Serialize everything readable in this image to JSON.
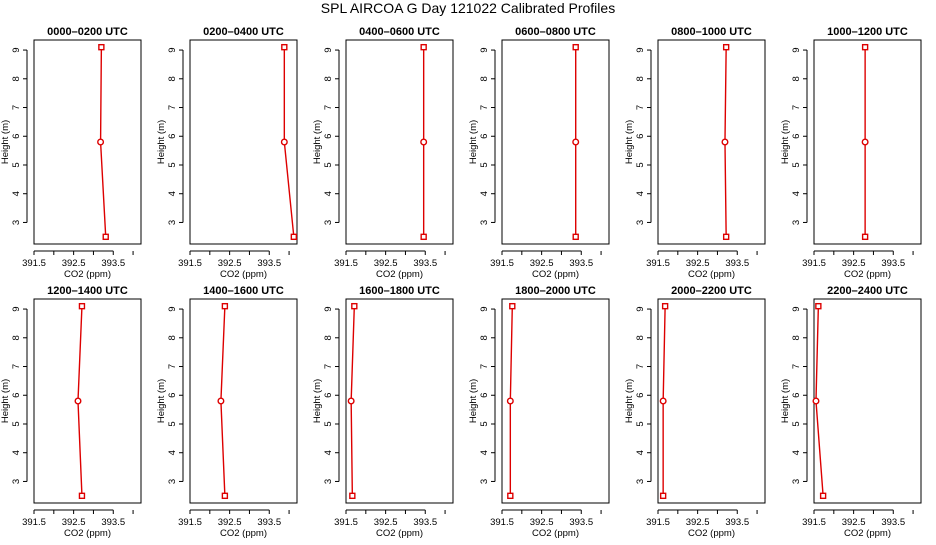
{
  "title": "SPL AIRCOA G  Day 121022  Calibrated Profiles",
  "chart_data": [
    {
      "type": "line",
      "title": "0000–0200 UTC",
      "xlabel": "CO2 (ppm)",
      "ylabel": "Height (m)",
      "xlim": [
        391.5,
        394.2
      ],
      "ylim": [
        2.25,
        9.35
      ],
      "xticks": [
        "391.5",
        "392.5",
        "393.5"
      ],
      "yticks": [
        "3",
        "4",
        "5",
        "6",
        "7",
        "8",
        "9"
      ],
      "heights": [
        2.5,
        5.8,
        9.1
      ],
      "values": [
        393.31,
        393.18,
        393.2
      ]
    },
    {
      "type": "line",
      "title": "0200–0400 UTC",
      "xlabel": "CO2 (ppm)",
      "ylabel": "Height (m)",
      "xlim": [
        391.5,
        394.2
      ],
      "ylim": [
        2.25,
        9.35
      ],
      "xticks": [
        "391.5",
        "392.5",
        "393.5"
      ],
      "yticks": [
        "3",
        "4",
        "5",
        "6",
        "7",
        "8",
        "9"
      ],
      "heights": [
        2.5,
        5.8,
        9.1
      ],
      "values": [
        394.12,
        393.88,
        393.88
      ]
    },
    {
      "type": "line",
      "title": "0400–0600 UTC",
      "xlabel": "CO2 (ppm)",
      "ylabel": "Height (m)",
      "xlim": [
        391.5,
        394.2
      ],
      "ylim": [
        2.25,
        9.35
      ],
      "xticks": [
        "391.5",
        "392.5",
        "393.5"
      ],
      "yticks": [
        "3",
        "4",
        "5",
        "6",
        "7",
        "8",
        "9"
      ],
      "heights": [
        2.5,
        5.8,
        9.1
      ],
      "values": [
        393.46,
        393.46,
        393.46
      ]
    },
    {
      "type": "line",
      "title": "0600–0800 UTC",
      "xlabel": "CO2 (ppm)",
      "ylabel": "Height (m)",
      "xlim": [
        391.5,
        394.2
      ],
      "ylim": [
        2.25,
        9.35
      ],
      "xticks": [
        "391.5",
        "392.5",
        "393.5"
      ],
      "yticks": [
        "3",
        "4",
        "5",
        "6",
        "7",
        "8",
        "9"
      ],
      "heights": [
        2.5,
        5.8,
        9.1
      ],
      "values": [
        393.36,
        393.36,
        393.36
      ]
    },
    {
      "type": "line",
      "title": "0800–1000 UTC",
      "xlabel": "CO2 (ppm)",
      "ylabel": "Height (m)",
      "xlim": [
        391.5,
        394.2
      ],
      "ylim": [
        2.25,
        9.35
      ],
      "xticks": [
        "391.5",
        "392.5",
        "393.5"
      ],
      "yticks": [
        "3",
        "4",
        "5",
        "6",
        "7",
        "8",
        "9"
      ],
      "heights": [
        2.5,
        5.8,
        9.1
      ],
      "values": [
        393.22,
        393.19,
        393.22
      ]
    },
    {
      "type": "line",
      "title": "1000–1200 UTC",
      "xlabel": "CO2 (ppm)",
      "ylabel": "Height (m)",
      "xlim": [
        391.5,
        394.2
      ],
      "ylim": [
        2.25,
        9.35
      ],
      "xticks": [
        "391.5",
        "392.5",
        "393.5"
      ],
      "yticks": [
        "3",
        "4",
        "5",
        "6",
        "7",
        "8",
        "9"
      ],
      "heights": [
        2.5,
        5.8,
        9.1
      ],
      "values": [
        392.79,
        392.79,
        392.79
      ]
    },
    {
      "type": "line",
      "title": "1200–1400 UTC",
      "xlabel": "CO2 (ppm)",
      "ylabel": "Height (m)",
      "xlim": [
        391.5,
        394.2
      ],
      "ylim": [
        2.25,
        9.35
      ],
      "xticks": [
        "391.5",
        "392.5",
        "393.5"
      ],
      "yticks": [
        "3",
        "4",
        "5",
        "6",
        "7",
        "8",
        "9"
      ],
      "heights": [
        2.5,
        5.8,
        9.1
      ],
      "values": [
        392.71,
        392.61,
        392.71
      ]
    },
    {
      "type": "line",
      "title": "1400–1600 UTC",
      "xlabel": "CO2 (ppm)",
      "ylabel": "Height (m)",
      "xlim": [
        391.5,
        394.2
      ],
      "ylim": [
        2.25,
        9.35
      ],
      "xticks": [
        "391.5",
        "392.5",
        "393.5"
      ],
      "yticks": [
        "3",
        "4",
        "5",
        "6",
        "7",
        "8",
        "9"
      ],
      "heights": [
        2.5,
        5.8,
        9.1
      ],
      "values": [
        392.38,
        392.28,
        392.38
      ]
    },
    {
      "type": "line",
      "title": "1600–1800 UTC",
      "xlabel": "CO2 (ppm)",
      "ylabel": "Height (m)",
      "xlim": [
        391.5,
        394.2
      ],
      "ylim": [
        2.25,
        9.35
      ],
      "xticks": [
        "391.5",
        "392.5",
        "393.5"
      ],
      "yticks": [
        "3",
        "4",
        "5",
        "6",
        "7",
        "8",
        "9"
      ],
      "heights": [
        2.5,
        5.8,
        9.1
      ],
      "values": [
        391.66,
        391.63,
        391.71
      ]
    },
    {
      "type": "line",
      "title": "1800–2000 UTC",
      "xlabel": "CO2 (ppm)",
      "ylabel": "Height (m)",
      "xlim": [
        391.5,
        394.2
      ],
      "ylim": [
        2.25,
        9.35
      ],
      "xticks": [
        "391.5",
        "392.5",
        "393.5"
      ],
      "yticks": [
        "3",
        "4",
        "5",
        "6",
        "7",
        "8",
        "9"
      ],
      "heights": [
        2.5,
        5.8,
        9.1
      ],
      "values": [
        391.71,
        391.71,
        391.76
      ]
    },
    {
      "type": "line",
      "title": "2000–2200 UTC",
      "xlabel": "CO2 (ppm)",
      "ylabel": "Height (m)",
      "xlim": [
        391.5,
        394.2
      ],
      "ylim": [
        2.25,
        9.35
      ],
      "xticks": [
        "391.5",
        "392.5",
        "393.5"
      ],
      "yticks": [
        "3",
        "4",
        "5",
        "6",
        "7",
        "8",
        "9"
      ],
      "heights": [
        2.5,
        5.8,
        9.1
      ],
      "values": [
        391.63,
        391.63,
        391.68
      ]
    },
    {
      "type": "line",
      "title": "2200–2400 UTC",
      "xlabel": "CO2 (ppm)",
      "ylabel": "Height (m)",
      "xlim": [
        391.5,
        394.2
      ],
      "ylim": [
        2.25,
        9.35
      ],
      "xticks": [
        "391.5",
        "392.5",
        "393.5"
      ],
      "yticks": [
        "3",
        "4",
        "5",
        "6",
        "7",
        "8",
        "9"
      ],
      "heights": [
        2.5,
        5.8,
        9.1
      ],
      "values": [
        391.73,
        391.55,
        391.61
      ]
    }
  ],
  "colors": {
    "series": "#dd0000",
    "axis": "#000000"
  }
}
